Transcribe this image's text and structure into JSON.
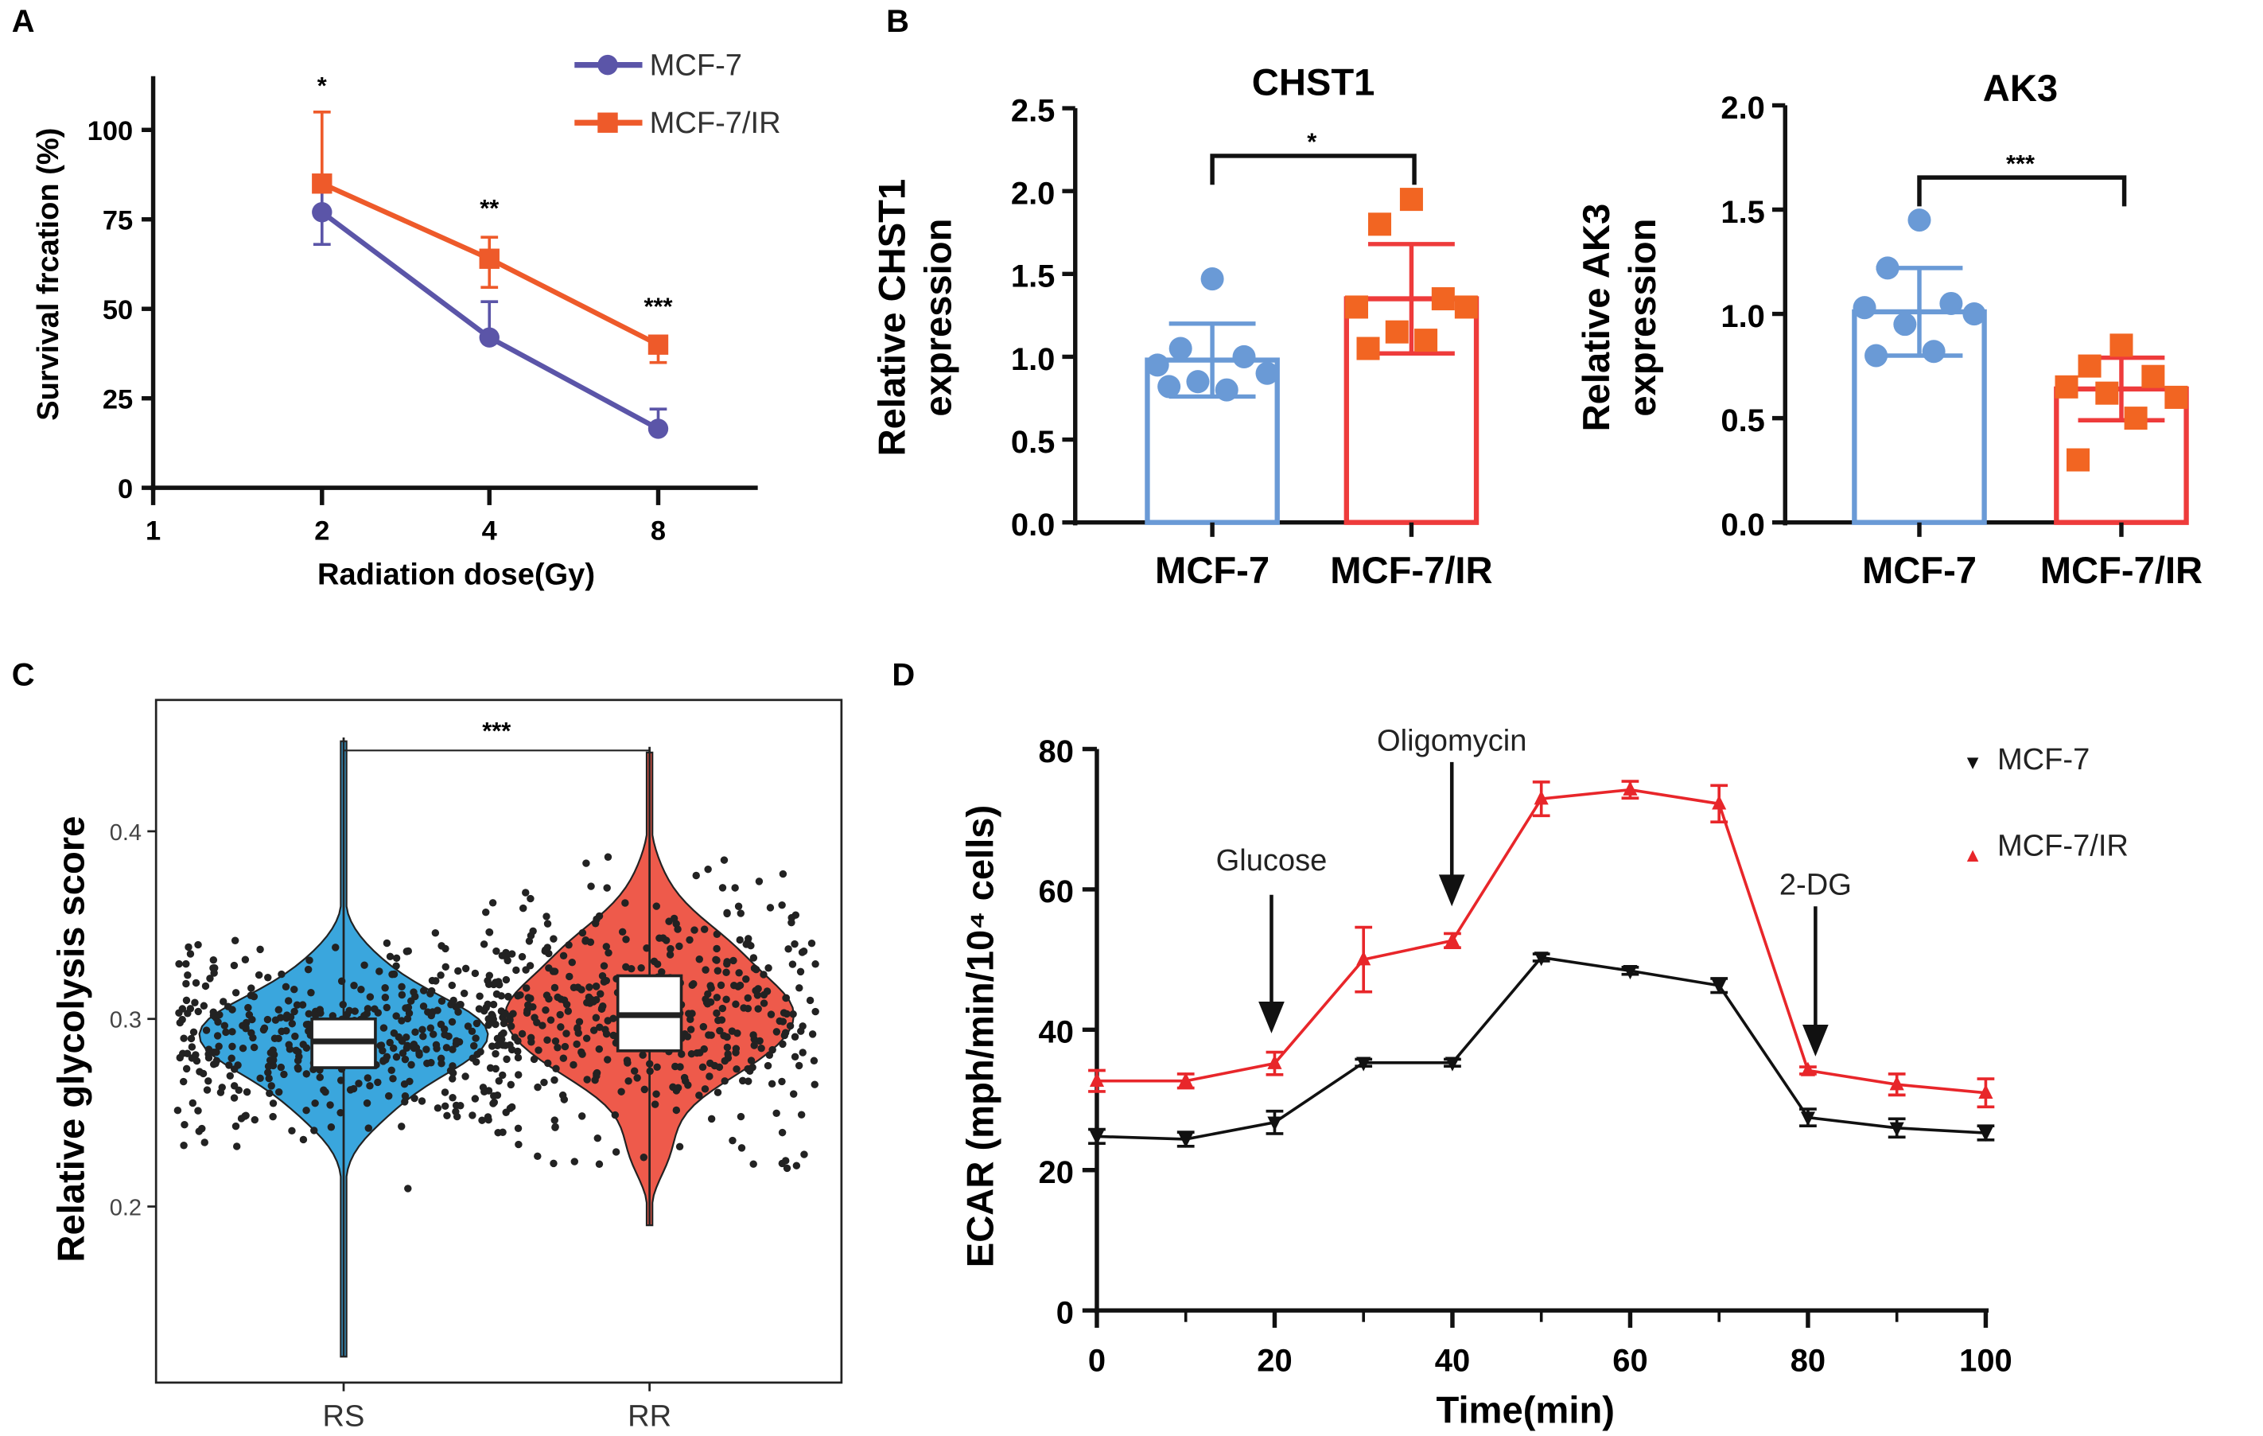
{
  "panel_labels": [
    "A",
    "B",
    "C",
    "D"
  ],
  "chart_data": [
    {
      "panel": "A",
      "type": "line",
      "xlabel": "Radiation dose(Gy)",
      "ylabel": "Survival frcation (%)",
      "x_scale": "log2",
      "x_ticks": [
        "1",
        "2",
        "4",
        "8"
      ],
      "y_ticks": [
        "0",
        "25",
        "50",
        "75",
        "100"
      ],
      "ylim": [
        0,
        115
      ],
      "legend_position": "top-right",
      "series": [
        {
          "name": "MCF-7",
          "color": "#5b55a8",
          "marker": "circle",
          "x": [
            2,
            4,
            8
          ],
          "y": [
            77,
            42,
            16.5
          ],
          "err_low": [
            68,
            42,
            16.5
          ],
          "err_high": [
            86,
            52,
            22
          ]
        },
        {
          "name": "MCF-7/IR",
          "color": "#ee5a2a",
          "marker": "square",
          "x": [
            2,
            4,
            8
          ],
          "y": [
            85,
            64,
            40
          ],
          "err_low": [
            85,
            56,
            35
          ],
          "err_high": [
            105,
            70,
            40
          ]
        }
      ],
      "significance": [
        "*",
        "**",
        "***"
      ]
    },
    {
      "panel": "B",
      "type": "bar",
      "title": "CHST1",
      "ylabel_lines": [
        "Relative CHST1",
        "expression"
      ],
      "categories": [
        "MCF-7",
        "MCF-7/IR"
      ],
      "y_ticks": [
        "0.0",
        "0.5",
        "1.0",
        "1.5",
        "2.0",
        "2.5"
      ],
      "ylim": [
        0,
        2.5
      ],
      "colors": [
        "#6a9ad6",
        "#ee3b3b"
      ],
      "point_colors": [
        "#6a9ad6",
        "#f26522"
      ],
      "means": [
        0.98,
        1.35
      ],
      "sd": [
        0.22,
        0.33
      ],
      "points": [
        [
          1.47,
          1.05,
          1.0,
          0.95,
          0.9,
          0.85,
          0.8,
          0.82
        ],
        [
          1.95,
          1.8,
          1.35,
          1.3,
          1.3,
          1.15,
          1.1,
          1.05
        ]
      ],
      "significance": "*"
    },
    {
      "panel": "B",
      "type": "bar",
      "title": "AK3",
      "ylabel_lines": [
        "Relative AK3",
        "expression"
      ],
      "categories": [
        "MCF-7",
        "MCF-7/IR"
      ],
      "y_ticks": [
        "0.0",
        "0.5",
        "1.0",
        "1.5",
        "2.0"
      ],
      "ylim": [
        0,
        2.0
      ],
      "colors": [
        "#6a9ad6",
        "#ee3b3b"
      ],
      "point_colors": [
        "#6a9ad6",
        "#f26522"
      ],
      "means": [
        1.01,
        0.64
      ],
      "sd": [
        0.21,
        0.15
      ],
      "points": [
        [
          1.45,
          1.22,
          1.05,
          1.03,
          1.0,
          0.95,
          0.82,
          0.8
        ],
        [
          0.85,
          0.75,
          0.7,
          0.65,
          0.6,
          0.62,
          0.5,
          0.3
        ]
      ],
      "significance": "***"
    },
    {
      "panel": "C",
      "type": "violin",
      "ylabel": "Relative glycolysis score",
      "categories": [
        "RS",
        "RR"
      ],
      "y_ticks": [
        "0.2",
        "0.3",
        "0.4"
      ],
      "ylim": [
        0.11,
        0.46
      ],
      "colors": [
        "#3aa6dd",
        "#ee5a4b"
      ],
      "median": [
        0.288,
        0.302
      ],
      "q1": [
        0.274,
        0.283
      ],
      "q3": [
        0.3,
        0.323
      ],
      "min": [
        0.12,
        0.19
      ],
      "max": [
        0.45,
        0.445
      ],
      "significance": "***"
    },
    {
      "panel": "D",
      "type": "line",
      "xlabel": "Time(min)",
      "ylabel": "ECAR (mph/min/10⁴ cells)",
      "x_ticks": [
        "0",
        "20",
        "40",
        "60",
        "80",
        "100"
      ],
      "y_ticks": [
        "0",
        "20",
        "40",
        "60",
        "80"
      ],
      "xlim": [
        0,
        100
      ],
      "ylim": [
        0,
        80
      ],
      "legend_position": "top-right",
      "annotations": [
        {
          "label": "Glucose",
          "x": 20
        },
        {
          "label": "Oligomycin",
          "x": 40
        },
        {
          "label": "2-DG",
          "x": 80
        }
      ],
      "x": [
        0,
        10,
        20,
        30,
        40,
        50,
        60,
        70,
        80,
        90,
        100
      ],
      "series": [
        {
          "name": "MCF-7",
          "color": "#111111",
          "marker": "triangle-down",
          "y": [
            24.8,
            24.4,
            26.8,
            35.3,
            35.3,
            50.3,
            48.4,
            46.3,
            27.5,
            26.0,
            25.3
          ],
          "err": [
            1,
            1,
            1.6,
            0.5,
            0.5,
            0.5,
            0.5,
            1,
            1.2,
            1.3,
            1
          ]
        },
        {
          "name": "MCF-7/IR",
          "color": "#e8262a",
          "marker": "triangle-up",
          "y": [
            32.7,
            32.7,
            35.2,
            50.0,
            52.7,
            72.9,
            74.2,
            72.2,
            34.2,
            32.2,
            31.0
          ],
          "err": [
            1.5,
            1,
            1.6,
            4.6,
            1,
            2.4,
            1.2,
            2.6,
            0.5,
            1.5,
            2
          ]
        }
      ]
    }
  ]
}
